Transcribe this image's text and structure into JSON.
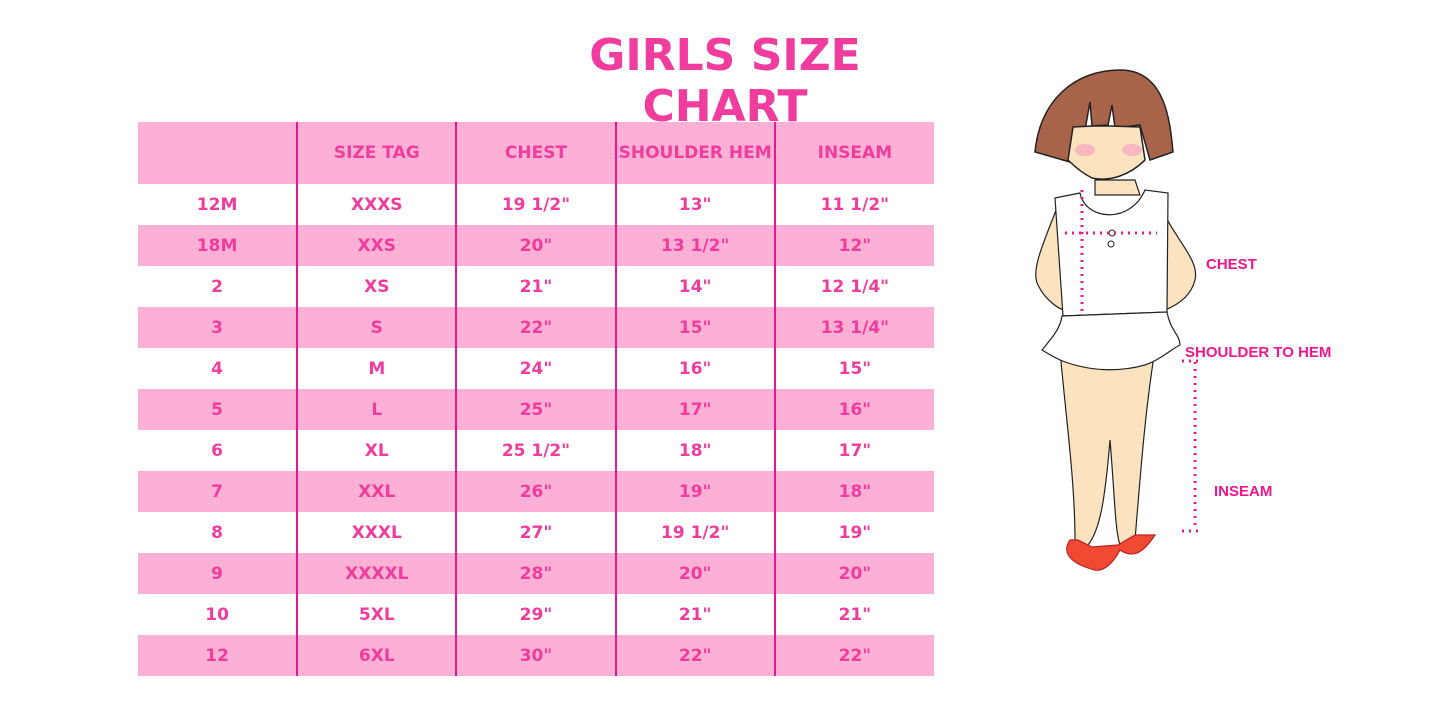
{
  "title": "GIRLS SIZE CHART",
  "table": {
    "headers": [
      "",
      "SIZE TAG",
      "CHEST",
      "SHOULDER HEM",
      "INSEAM"
    ],
    "rows": [
      [
        "12M",
        "XXXS",
        "19 1/2\"",
        "13\"",
        "11 1/2\""
      ],
      [
        "18M",
        "XXS",
        "20\"",
        "13 1/2\"",
        "12\""
      ],
      [
        "2",
        "XS",
        "21\"",
        "14\"",
        "12 1/4\""
      ],
      [
        "3",
        "S",
        "22\"",
        "15\"",
        "13 1/4\""
      ],
      [
        "4",
        "M",
        "24\"",
        "16\"",
        "15\""
      ],
      [
        "5",
        "L",
        "25\"",
        "17\"",
        "16\""
      ],
      [
        "6",
        "XL",
        "25 1/2\"",
        "18\"",
        "17\""
      ],
      [
        "7",
        "XXL",
        "26\"",
        "19\"",
        "18\""
      ],
      [
        "8",
        "XXXL",
        "27\"",
        "19 1/2\"",
        "19\""
      ],
      [
        "9",
        "XXXXL",
        "28\"",
        "20\"",
        "20\""
      ],
      [
        "10",
        "5XL",
        "29\"",
        "21\"",
        "21\""
      ],
      [
        "12",
        "6XL",
        "30\"",
        "22\"",
        "22\""
      ]
    ]
  },
  "figure": {
    "labels": {
      "chest": "CHEST",
      "shoulder_to_hem": "SHOULDER TO HEM",
      "inseam": "INSEAM"
    }
  },
  "colors": {
    "accent": "#f03c9c",
    "row_pink": "#fcb0d6",
    "divider": "#e5198d"
  }
}
